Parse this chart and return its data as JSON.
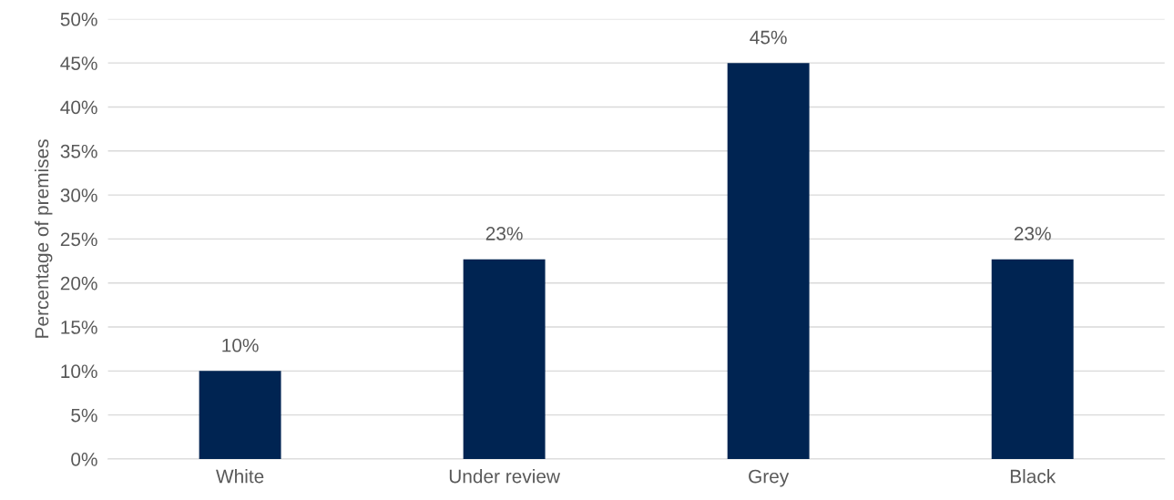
{
  "chart_data": {
    "type": "bar",
    "ylabel": "Percentage of premises",
    "categories": [
      "White",
      "Under review",
      "Grey",
      "Black"
    ],
    "values": [
      10,
      22.7,
      45,
      22.7
    ],
    "color": "#002452",
    "value_labels": [
      "10%",
      "23%",
      "45%",
      "23%"
    ],
    "ylim": [
      0,
      50
    ],
    "yticks": [
      {
        "value": 0,
        "label": "0%"
      },
      {
        "value": 5,
        "label": "5%"
      },
      {
        "value": 10,
        "label": "10%"
      },
      {
        "value": 15,
        "label": "15%"
      },
      {
        "value": 20,
        "label": "20%"
      },
      {
        "value": 25,
        "label": "25%"
      },
      {
        "value": 30,
        "label": "30%"
      },
      {
        "value": 35,
        "label": "35%"
      },
      {
        "value": 40,
        "label": "40%"
      },
      {
        "value": 45,
        "label": "45%"
      },
      {
        "value": 50,
        "label": "50%"
      }
    ],
    "grid": "y",
    "legend": false
  }
}
